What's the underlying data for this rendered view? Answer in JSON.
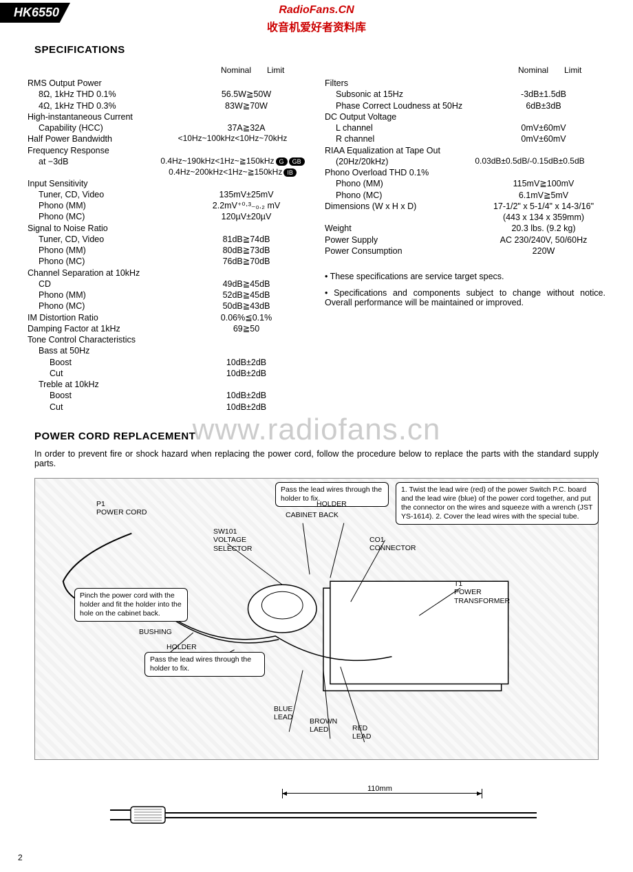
{
  "model": "HK6550",
  "watermark": {
    "url": "RadioFans.CN",
    "cn": "收音机爱好者资料库",
    "mid": "www.radiofans.cn"
  },
  "sections": {
    "specs": "SPECIFICATIONS",
    "power": "POWER CORD REPLACEMENT"
  },
  "columnHeaders": {
    "nominal": "Nominal",
    "limit": "Limit"
  },
  "leftSpecs": [
    {
      "label": "RMS Output Power",
      "val": ""
    },
    {
      "label": "8Ω, 1kHz THD 0.1%",
      "indent": 1,
      "val": "56.5W≧50W"
    },
    {
      "label": "4Ω, 1kHz THD 0.3%",
      "indent": 1,
      "val": "83W≧70W"
    },
    {
      "label": "High-instantaneous Current",
      "val": ""
    },
    {
      "label": "Capability (HCC)",
      "indent": 1,
      "val": "37A≧32A"
    },
    {
      "label": "Half Power Bandwidth",
      "val": "<10Hz~100kHz<10Hz~70kHz",
      "wide": true
    },
    {
      "label": "Frequency Response",
      "val": ""
    },
    {
      "label": "at −3dB",
      "indent": 1,
      "val": "0.4Hz~190kHz<1Hz~≧150kHz",
      "wide": true,
      "pills": [
        "G",
        "GB"
      ]
    },
    {
      "label": "",
      "indent": 1,
      "val": "0.4Hz~200kHz<1Hz~≧150kHz",
      "wide": true,
      "pills": [
        "IB"
      ]
    },
    {
      "label": "Input Sensitivity",
      "val": ""
    },
    {
      "label": "Tuner, CD, Video",
      "indent": 1,
      "val": "135mV±25mV"
    },
    {
      "label": "Phono (MM)",
      "indent": 1,
      "val": "2.2mV⁺⁰·³₋₀.₂ mV"
    },
    {
      "label": "Phono (MC)",
      "indent": 1,
      "val": "120µV±20µV"
    },
    {
      "label": "Signal to Noise Ratio",
      "val": ""
    },
    {
      "label": "Tuner, CD, Video",
      "indent": 1,
      "val": "81dB≧74dB"
    },
    {
      "label": "Phono (MM)",
      "indent": 1,
      "val": "80dB≧73dB"
    },
    {
      "label": "Phono (MC)",
      "indent": 1,
      "val": "76dB≧70dB"
    },
    {
      "label": "Channel Separation at 10kHz",
      "val": ""
    },
    {
      "label": "CD",
      "indent": 1,
      "val": "49dB≧45dB"
    },
    {
      "label": "Phono (MM)",
      "indent": 1,
      "val": "52dB≧45dB"
    },
    {
      "label": "Phono (MC)",
      "indent": 1,
      "val": "50dB≧43dB"
    },
    {
      "label": "IM Distortion Ratio",
      "val": "0.06%≦0.1%"
    },
    {
      "label": "Damping Factor at 1kHz",
      "val": "69≧50"
    },
    {
      "label": "Tone Control Characteristics",
      "val": ""
    },
    {
      "label": "Bass at 50Hz",
      "indent": 1,
      "val": ""
    },
    {
      "label": "Boost",
      "indent": 2,
      "val": "10dB±2dB"
    },
    {
      "label": "Cut",
      "indent": 2,
      "val": "10dB±2dB"
    },
    {
      "label": "Treble at 10kHz",
      "indent": 1,
      "val": ""
    },
    {
      "label": "Boost",
      "indent": 2,
      "val": "10dB±2dB"
    },
    {
      "label": "Cut",
      "indent": 2,
      "val": "10dB±2dB"
    }
  ],
  "rightSpecs": [
    {
      "label": "Filters",
      "val": ""
    },
    {
      "label": "Subsonic at 15Hz",
      "indent": 1,
      "val": "-3dB±1.5dB"
    },
    {
      "label": "Phase Correct Loudness at 50Hz",
      "indent": 1,
      "val": "6dB±3dB"
    },
    {
      "label": "DC Output Voltage",
      "val": ""
    },
    {
      "label": "L channel",
      "indent": 1,
      "val": "0mV±60mV"
    },
    {
      "label": "R channel",
      "indent": 1,
      "val": "0mV±60mV"
    },
    {
      "label": "RIAA Equalization at Tape Out",
      "val": ""
    },
    {
      "label": "(20Hz/20kHz)",
      "indent": 1,
      "val": "0.03dB±0.5dB/-0.15dB±0.5dB",
      "wide": true
    },
    {
      "label": "Phono Overload THD 0.1%",
      "val": ""
    },
    {
      "label": "Phono (MM)",
      "indent": 1,
      "val": "115mV≧100mV"
    },
    {
      "label": "Phono (MC)",
      "indent": 1,
      "val": "6.1mV≧5mV"
    },
    {
      "label": "Dimensions (W x H x D)",
      "val": "17-1/2\" x 5-1/4\" x 14-3/16\""
    },
    {
      "label": "",
      "val": "(443 x 134 x 359mm)"
    },
    {
      "label": "Weight",
      "val": "20.3 lbs. (9.2 kg)"
    },
    {
      "label": "Power Supply",
      "val": "AC 230/240V, 50/60Hz"
    },
    {
      "label": "Power Consumption",
      "val": "220W"
    }
  ],
  "notes": [
    "These specifications are service target specs.",
    "Specifications and components subject to change without notice. Overall performance will be maintained or improved."
  ],
  "replaceText": "In order to prevent fire or shock hazard when replacing the power cord, follow the procedure below to replace the parts with the standard supply parts.",
  "diagramLabels": {
    "p1": "P1\nPOWER CORD",
    "sw101": "SW101\nVOLTAGE\nSELECTOR",
    "cabback": "CABINET BACK",
    "holder": "HOLDER",
    "holder2": "HOLDER",
    "co1": "CO1\nCONNECTOR",
    "t1": "T1\nPOWER\nTRANSFORMER",
    "bushing": "BUSHING",
    "blue": "BLUE\nLEAD",
    "brown": "BROWN\nLAED",
    "red": "RED\nLEAD",
    "callout1": "Pass the lead wires through\nthe holder to fix.",
    "callout2": "1. Twist the lead wire (red) of the power Switch P.C. board and the lead wire (blue) of the power cord together, and put the connector on the wires and squeeze with a wrench (JST YS-1614).\n2. Cover the lead wires with the special tube.",
    "callout3": "Pinch the power cord with the holder and fit the holder into the hole on the cabinet back.",
    "callout4": "Pass the lead wires through\nthe holder to fix.",
    "cordlen": "110mm"
  },
  "pageNum": "2"
}
